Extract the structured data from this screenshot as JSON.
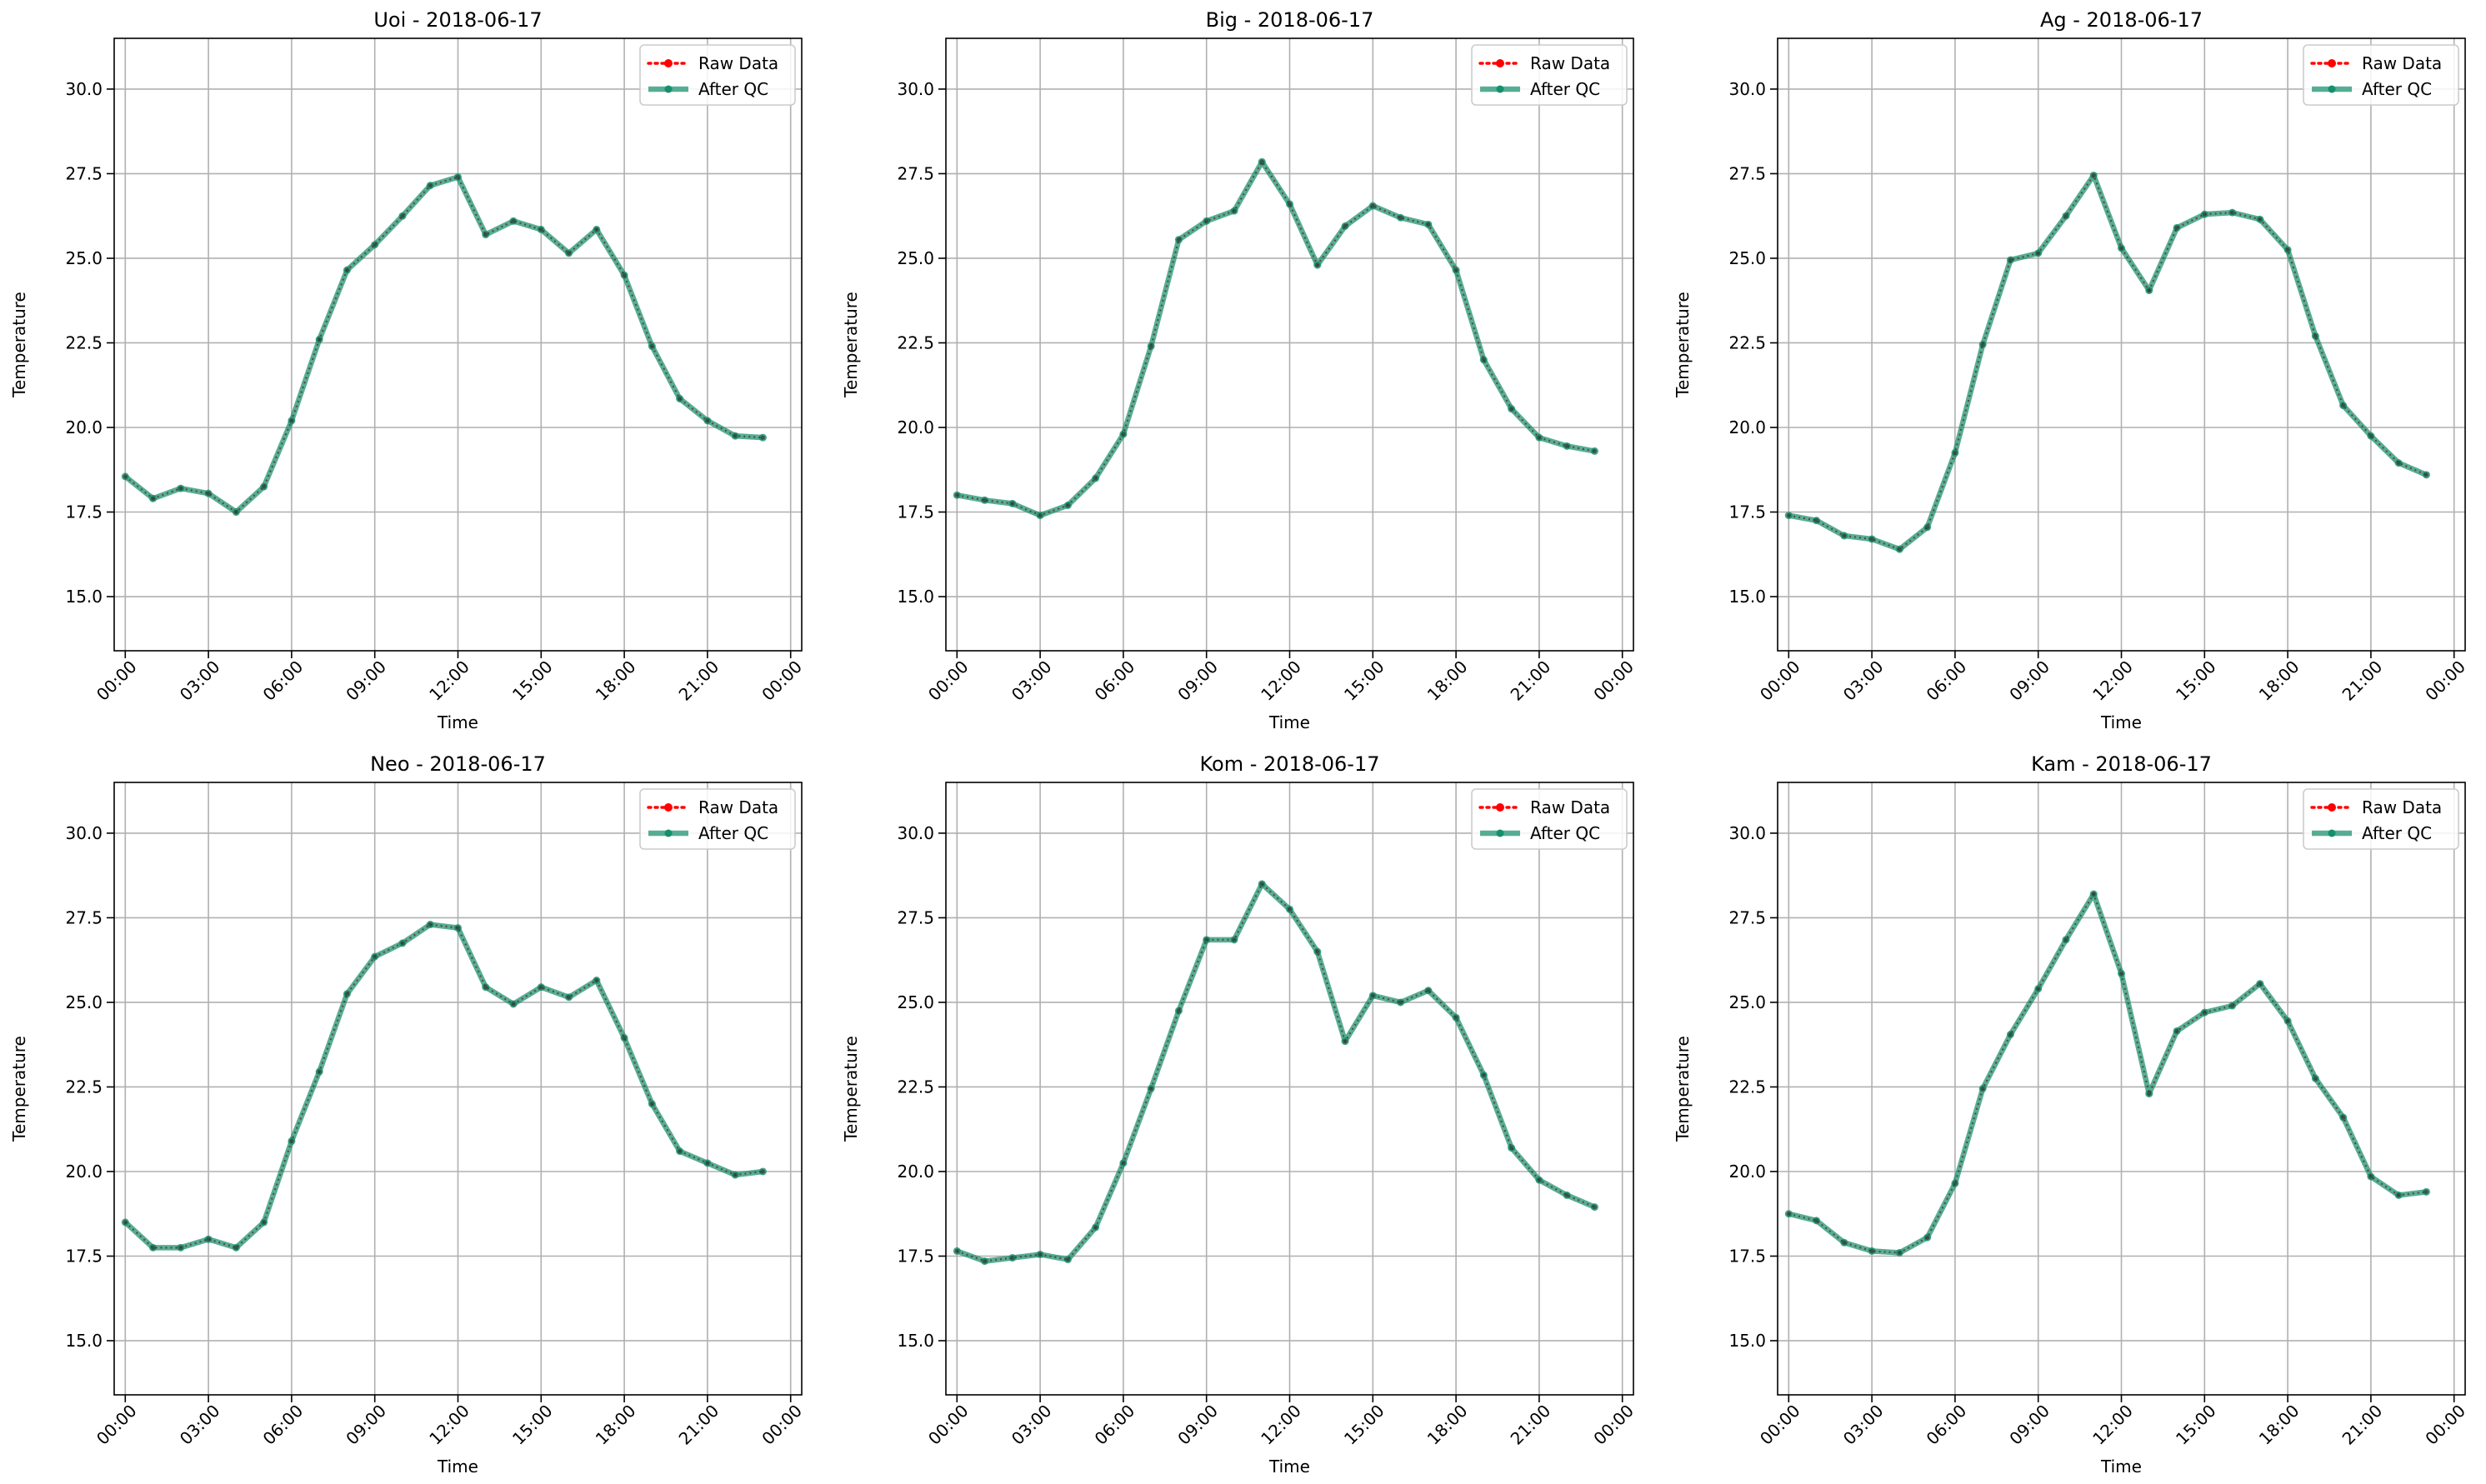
{
  "chart_data": [
    {
      "type": "line",
      "title": "Uoi - 2018-06-17",
      "xlabel": "Time",
      "ylabel": "Temperature",
      "x": [
        "00:00",
        "01:00",
        "02:00",
        "03:00",
        "04:00",
        "05:00",
        "06:00",
        "07:00",
        "08:00",
        "09:00",
        "10:00",
        "11:00",
        "12:00",
        "13:00",
        "14:00",
        "15:00",
        "16:00",
        "17:00",
        "18:00",
        "19:00",
        "20:00",
        "21:00",
        "22:00",
        "23:00"
      ],
      "xticks": [
        "00:00",
        "03:00",
        "06:00",
        "09:00",
        "12:00",
        "15:00",
        "18:00",
        "21:00",
        "00:00"
      ],
      "yticks": [
        "15.0",
        "17.5",
        "20.0",
        "22.5",
        "25.0",
        "27.5",
        "30.0"
      ],
      "ylim": [
        13.4,
        31.5
      ],
      "grid": true,
      "legend_position": "top-right",
      "series": [
        {
          "name": "Raw Data",
          "color": "#ff0000",
          "style": "dotted",
          "values": [
            18.55,
            17.9,
            18.2,
            18.05,
            17.5,
            18.25,
            20.2,
            22.6,
            24.65,
            25.4,
            26.25,
            27.15,
            27.4,
            25.7,
            26.1,
            25.85,
            25.15,
            25.85,
            24.5,
            22.4,
            20.85,
            20.2,
            19.75,
            19.7
          ]
        },
        {
          "name": "After QC",
          "color": "#168f6c",
          "style": "solid",
          "values": [
            18.55,
            17.9,
            18.2,
            18.05,
            17.5,
            18.25,
            20.2,
            22.6,
            24.65,
            25.4,
            26.25,
            27.15,
            27.4,
            25.7,
            26.1,
            25.85,
            25.15,
            25.85,
            24.5,
            22.4,
            20.85,
            20.2,
            19.75,
            19.7
          ]
        }
      ]
    },
    {
      "type": "line",
      "title": "Big - 2018-06-17",
      "xlabel": "Time",
      "ylabel": "Temperature",
      "x": [
        "00:00",
        "01:00",
        "02:00",
        "03:00",
        "04:00",
        "05:00",
        "06:00",
        "07:00",
        "08:00",
        "09:00",
        "10:00",
        "11:00",
        "12:00",
        "13:00",
        "14:00",
        "15:00",
        "16:00",
        "17:00",
        "18:00",
        "19:00",
        "20:00",
        "21:00",
        "22:00",
        "23:00"
      ],
      "xticks": [
        "00:00",
        "03:00",
        "06:00",
        "09:00",
        "12:00",
        "15:00",
        "18:00",
        "21:00",
        "00:00"
      ],
      "yticks": [
        "15.0",
        "17.5",
        "20.0",
        "22.5",
        "25.0",
        "27.5",
        "30.0"
      ],
      "ylim": [
        13.4,
        31.5
      ],
      "grid": true,
      "legend_position": "top-right",
      "series": [
        {
          "name": "Raw Data",
          "color": "#ff0000",
          "style": "dotted",
          "values": [
            18.0,
            17.85,
            17.75,
            17.4,
            17.7,
            18.5,
            19.8,
            22.4,
            25.55,
            26.1,
            26.4,
            27.85,
            26.6,
            24.8,
            25.95,
            26.55,
            26.2,
            26.0,
            24.65,
            22.0,
            20.55,
            19.7,
            19.45,
            19.3
          ]
        },
        {
          "name": "After QC",
          "color": "#168f6c",
          "style": "solid",
          "values": [
            18.0,
            17.85,
            17.75,
            17.4,
            17.7,
            18.5,
            19.8,
            22.4,
            25.55,
            26.1,
            26.4,
            27.85,
            26.6,
            24.8,
            25.95,
            26.55,
            26.2,
            26.0,
            24.65,
            22.0,
            20.55,
            19.7,
            19.45,
            19.3
          ]
        }
      ]
    },
    {
      "type": "line",
      "title": "Ag - 2018-06-17",
      "xlabel": "Time",
      "ylabel": "Temperature",
      "x": [
        "00:00",
        "01:00",
        "02:00",
        "03:00",
        "04:00",
        "05:00",
        "06:00",
        "07:00",
        "08:00",
        "09:00",
        "10:00",
        "11:00",
        "12:00",
        "13:00",
        "14:00",
        "15:00",
        "16:00",
        "17:00",
        "18:00",
        "19:00",
        "20:00",
        "21:00",
        "22:00",
        "23:00"
      ],
      "xticks": [
        "00:00",
        "03:00",
        "06:00",
        "09:00",
        "12:00",
        "15:00",
        "18:00",
        "21:00",
        "00:00"
      ],
      "yticks": [
        "15.0",
        "17.5",
        "20.0",
        "22.5",
        "25.0",
        "27.5",
        "30.0"
      ],
      "ylim": [
        13.4,
        31.5
      ],
      "grid": true,
      "legend_position": "top-right",
      "series": [
        {
          "name": "Raw Data",
          "color": "#ff0000",
          "style": "dotted",
          "values": [
            17.4,
            17.25,
            16.8,
            16.7,
            16.4,
            17.05,
            19.25,
            22.45,
            24.95,
            25.15,
            26.25,
            27.45,
            25.3,
            24.05,
            25.9,
            26.3,
            26.35,
            26.15,
            25.25,
            22.7,
            20.65,
            19.75,
            18.95,
            18.6
          ]
        },
        {
          "name": "After QC",
          "color": "#168f6c",
          "style": "solid",
          "values": [
            17.4,
            17.25,
            16.8,
            16.7,
            16.4,
            17.05,
            19.25,
            22.45,
            24.95,
            25.15,
            26.25,
            27.45,
            25.3,
            24.05,
            25.9,
            26.3,
            26.35,
            26.15,
            25.25,
            22.7,
            20.65,
            19.75,
            18.95,
            18.6
          ]
        }
      ]
    },
    {
      "type": "line",
      "title": "Neo - 2018-06-17",
      "xlabel": "Time",
      "ylabel": "Temperature",
      "x": [
        "00:00",
        "01:00",
        "02:00",
        "03:00",
        "04:00",
        "05:00",
        "06:00",
        "07:00",
        "08:00",
        "09:00",
        "10:00",
        "11:00",
        "12:00",
        "13:00",
        "14:00",
        "15:00",
        "16:00",
        "17:00",
        "18:00",
        "19:00",
        "20:00",
        "21:00",
        "22:00",
        "23:00"
      ],
      "xticks": [
        "00:00",
        "03:00",
        "06:00",
        "09:00",
        "12:00",
        "15:00",
        "18:00",
        "21:00",
        "00:00"
      ],
      "yticks": [
        "15.0",
        "17.5",
        "20.0",
        "22.5",
        "25.0",
        "27.5",
        "30.0"
      ],
      "ylim": [
        13.4,
        31.5
      ],
      "grid": true,
      "legend_position": "top-right",
      "series": [
        {
          "name": "Raw Data",
          "color": "#ff0000",
          "style": "dotted",
          "values": [
            18.5,
            17.75,
            17.75,
            18.0,
            17.75,
            18.5,
            20.9,
            22.95,
            25.25,
            26.35,
            26.75,
            27.3,
            27.2,
            25.45,
            24.95,
            25.45,
            25.15,
            25.65,
            23.95,
            22.0,
            20.6,
            20.25,
            19.9,
            20.0
          ]
        },
        {
          "name": "After QC",
          "color": "#168f6c",
          "style": "solid",
          "values": [
            18.5,
            17.75,
            17.75,
            18.0,
            17.75,
            18.5,
            20.9,
            22.95,
            25.25,
            26.35,
            26.75,
            27.3,
            27.2,
            25.45,
            24.95,
            25.45,
            25.15,
            25.65,
            23.95,
            22.0,
            20.6,
            20.25,
            19.9,
            20.0
          ]
        }
      ]
    },
    {
      "type": "line",
      "title": "Kom - 2018-06-17",
      "xlabel": "Time",
      "ylabel": "Temperature",
      "x": [
        "00:00",
        "01:00",
        "02:00",
        "03:00",
        "04:00",
        "05:00",
        "06:00",
        "07:00",
        "08:00",
        "09:00",
        "10:00",
        "11:00",
        "12:00",
        "13:00",
        "14:00",
        "15:00",
        "16:00",
        "17:00",
        "18:00",
        "19:00",
        "20:00",
        "21:00",
        "22:00",
        "23:00"
      ],
      "xticks": [
        "00:00",
        "03:00",
        "06:00",
        "09:00",
        "12:00",
        "15:00",
        "18:00",
        "21:00",
        "00:00"
      ],
      "yticks": [
        "15.0",
        "17.5",
        "20.0",
        "22.5",
        "25.0",
        "27.5",
        "30.0"
      ],
      "ylim": [
        13.4,
        31.5
      ],
      "grid": true,
      "legend_position": "top-right",
      "series": [
        {
          "name": "Raw Data",
          "color": "#ff0000",
          "style": "dotted",
          "values": [
            17.65,
            17.35,
            17.45,
            17.55,
            17.4,
            18.35,
            20.25,
            22.45,
            24.75,
            26.85,
            26.85,
            28.5,
            27.75,
            26.5,
            23.85,
            25.2,
            25.0,
            25.35,
            24.55,
            22.85,
            20.7,
            19.75,
            19.3,
            18.95
          ]
        },
        {
          "name": "After QC",
          "color": "#168f6c",
          "style": "solid",
          "values": [
            17.65,
            17.35,
            17.45,
            17.55,
            17.4,
            18.35,
            20.25,
            22.45,
            24.75,
            26.85,
            26.85,
            28.5,
            27.75,
            26.5,
            23.85,
            25.2,
            25.0,
            25.35,
            24.55,
            22.85,
            20.7,
            19.75,
            19.3,
            18.95
          ]
        }
      ]
    },
    {
      "type": "line",
      "title": "Kam - 2018-06-17",
      "xlabel": "Time",
      "ylabel": "Temperature",
      "x": [
        "00:00",
        "01:00",
        "02:00",
        "03:00",
        "04:00",
        "05:00",
        "06:00",
        "07:00",
        "08:00",
        "09:00",
        "10:00",
        "11:00",
        "12:00",
        "13:00",
        "14:00",
        "15:00",
        "16:00",
        "17:00",
        "18:00",
        "19:00",
        "20:00",
        "21:00",
        "22:00",
        "23:00"
      ],
      "xticks": [
        "00:00",
        "03:00",
        "06:00",
        "09:00",
        "12:00",
        "15:00",
        "18:00",
        "21:00",
        "00:00"
      ],
      "yticks": [
        "15.0",
        "17.5",
        "20.0",
        "22.5",
        "25.0",
        "27.5",
        "30.0"
      ],
      "ylim": [
        13.4,
        31.5
      ],
      "grid": true,
      "legend_position": "top-right",
      "series": [
        {
          "name": "Raw Data",
          "color": "#ff0000",
          "style": "dotted",
          "values": [
            18.75,
            18.55,
            17.9,
            17.65,
            17.6,
            18.05,
            19.65,
            22.45,
            24.05,
            25.4,
            26.85,
            28.2,
            25.85,
            22.3,
            24.15,
            24.7,
            24.9,
            25.55,
            24.45,
            22.75,
            21.6,
            19.85,
            19.3,
            19.4
          ]
        },
        {
          "name": "After QC",
          "color": "#168f6c",
          "style": "solid",
          "values": [
            18.75,
            18.55,
            17.9,
            17.65,
            17.6,
            18.05,
            19.65,
            22.45,
            24.05,
            25.4,
            26.85,
            28.2,
            25.85,
            22.3,
            24.15,
            24.7,
            24.9,
            25.55,
            24.45,
            22.75,
            21.6,
            19.85,
            19.3,
            19.4
          ]
        }
      ]
    }
  ]
}
